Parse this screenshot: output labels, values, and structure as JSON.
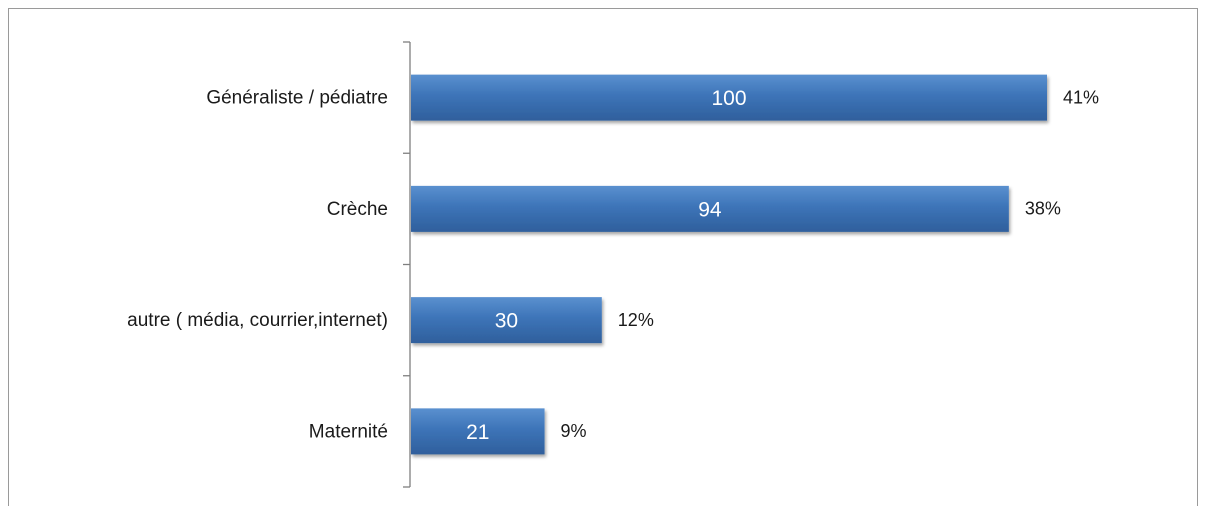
{
  "chart_data": {
    "type": "bar",
    "orientation": "horizontal",
    "categories": [
      "Généraliste / pédiatre",
      "Crèche",
      "autre ( média, courrier,internet)",
      "Maternité"
    ],
    "values": [
      100,
      94,
      30,
      21
    ],
    "percent_labels": [
      "41%",
      "38%",
      "12%",
      "9%"
    ],
    "xlim": [
      0,
      100
    ],
    "grid": false,
    "legend": "none",
    "bar_color": "#3d74b8",
    "bar_color_light": "#5a90cf",
    "bar_color_dark": "#2f5f9c",
    "value_label_color": "#ffffff",
    "axis_color": "#7f7f7f"
  }
}
